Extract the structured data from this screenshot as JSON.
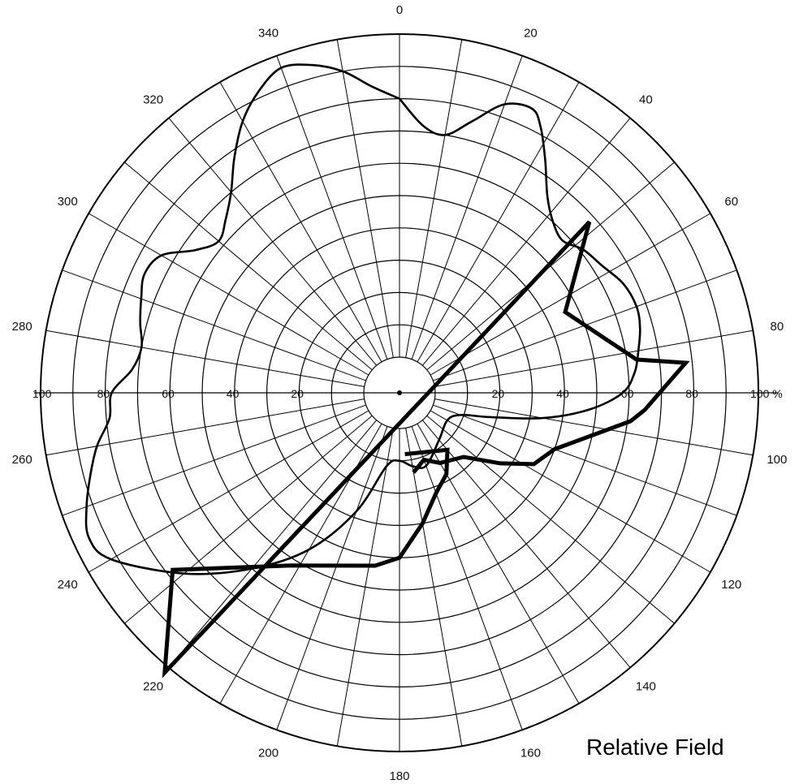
{
  "chart_data": {
    "type": "polar-line",
    "title": "Relative Field",
    "radial_unit": "%",
    "rlim": [
      0,
      100
    ],
    "angle_direction": "clockwise",
    "angle_zero": "top",
    "angle_ticks": [
      "0",
      "20",
      "40",
      "60",
      "80",
      "100",
      "120",
      "140",
      "160",
      "180",
      "200",
      "220",
      "240",
      "260",
      "280",
      "300",
      "320",
      "340"
    ],
    "radius_ticks": [
      "20",
      "40",
      "60",
      "80",
      "100 %"
    ],
    "radius_ticks_left": [
      "100",
      "80",
      "60",
      "40",
      "20"
    ],
    "grid": true,
    "series": [
      {
        "style": "thin",
        "points": [
          [
            0,
            80
          ],
          [
            5,
            72
          ],
          [
            10,
            70
          ],
          [
            15,
            76
          ],
          [
            20,
            84
          ],
          [
            25,
            86
          ],
          [
            28,
            82
          ],
          [
            32,
            74
          ],
          [
            37,
            65
          ],
          [
            42,
            60
          ],
          [
            47,
            58
          ],
          [
            52,
            61
          ],
          [
            58,
            63
          ],
          [
            64,
            66
          ],
          [
            70,
            67
          ],
          [
            75,
            66
          ],
          [
            80,
            64
          ],
          [
            85,
            62
          ],
          [
            90,
            58
          ],
          [
            95,
            48
          ],
          [
            100,
            34
          ],
          [
            105,
            18
          ],
          [
            110,
            9
          ],
          [
            120,
            6
          ],
          [
            140,
            8
          ],
          [
            160,
            13
          ],
          [
            170,
            12
          ],
          [
            180,
            10
          ],
          [
            190,
            12
          ],
          [
            200,
            28
          ],
          [
            210,
            45
          ],
          [
            220,
            60
          ],
          [
            230,
            76
          ],
          [
            240,
            92
          ],
          [
            245,
            95
          ],
          [
            250,
            92
          ],
          [
            255,
            88
          ],
          [
            260,
            84
          ],
          [
            265,
            79
          ],
          [
            270,
            78
          ],
          [
            275,
            72
          ],
          [
            280,
            70
          ],
          [
            285,
            72
          ],
          [
            290,
            74
          ],
          [
            295,
            76
          ],
          [
            300,
            74
          ],
          [
            305,
            66
          ],
          [
            310,
            62
          ],
          [
            315,
            65
          ],
          [
            320,
            70
          ],
          [
            325,
            78
          ],
          [
            330,
            86
          ],
          [
            335,
            92
          ],
          [
            340,
            96
          ],
          [
            345,
            94
          ],
          [
            350,
            90
          ],
          [
            355,
            84
          ],
          [
            360,
            80
          ]
        ]
      },
      {
        "style": "thick",
        "points": [
          [
            170,
            14
          ],
          [
            160,
            11
          ],
          [
            150,
            14
          ],
          [
            135,
            17
          ],
          [
            125,
            27
          ],
          [
            118,
            36
          ],
          [
            110,
            40
          ],
          [
            97,
            61
          ],
          [
            94,
            65
          ],
          [
            84,
            78
          ],
          [
            82,
            63
          ],
          [
            64,
            46
          ],
          [
            48,
            68
          ],
          [
            220,
            102
          ],
          [
            232,
            78
          ],
          [
            212,
            52
          ],
          [
            188,
            43
          ],
          [
            180,
            40
          ],
          [
            170,
            30
          ],
          [
            160,
            22
          ],
          [
            150,
            18
          ],
          [
            140,
            12
          ],
          [
            175,
            8
          ]
        ]
      }
    ]
  }
}
